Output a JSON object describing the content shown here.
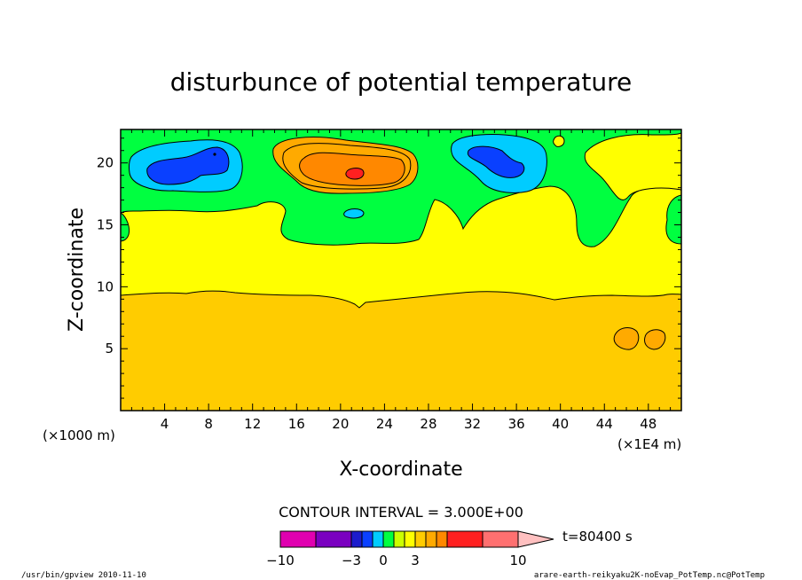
{
  "chart_data": {
    "type": "heatmap",
    "title": "disturbunce of potential temperature",
    "xlabel": "X-coordinate",
    "ylabel": "Z-coordinate",
    "x_unit_left": "(×1000 m)",
    "x_unit_right": "(×1E4 m)",
    "xlim": [
      0,
      51
    ],
    "ylim": [
      0,
      22.7
    ],
    "x_ticks": [
      4,
      8,
      12,
      16,
      20,
      24,
      28,
      32,
      36,
      40,
      44,
      48
    ],
    "y_ticks": [
      5,
      10,
      15,
      20
    ],
    "contour_interval_text": "CONTOUR INTERVAL = 3.000E+00",
    "time_text": "t=80400 s",
    "colorbar": {
      "colors": [
        "#e000b0",
        "#7a00c0",
        "#1c1ccc",
        "#0a40ff",
        "#00ccff",
        "#00ff40",
        "#ccff00",
        "#ffff00",
        "#ffcc00",
        "#ffaa00",
        "#ff8800",
        "#ff2020",
        "#ff7070",
        "#ffc0c0"
      ],
      "labels": [
        "−10",
        "−3",
        "0",
        "3",
        "10"
      ]
    },
    "regions": [
      {
        "level": "2.5",
        "color": "#ffcc00",
        "desc": "lower layer z below ~9.7"
      },
      {
        "level": "2",
        "color": "#ffff00",
        "desc": "band z ~9.7 to ~15"
      },
      {
        "level": "1",
        "color": "#00ff40",
        "desc": "upper background"
      },
      {
        "level": "-1",
        "color": "#00ccff",
        "desc": "cold anomaly centred x~6-8, z~20"
      },
      {
        "level": "-2",
        "color": "#0a40ff",
        "desc": "cold core x~6, z~20"
      },
      {
        "level": "-1",
        "color": "#00ccff",
        "desc": "cold anomaly centred x~34, z~20"
      },
      {
        "level": "-2",
        "color": "#0a40ff",
        "desc": "cold core x~34, z~20.5"
      },
      {
        "level": "3",
        "color": "#ffaa00",
        "desc": "warm anomaly centred x~21, z~19.5"
      },
      {
        "level": "4",
        "color": "#ff8800",
        "desc": "warm core x~21, z~19.5"
      },
      {
        "level": "3",
        "color": "#ffaa00",
        "desc": "small warm spots x~46.5 and x~48.5, z~6"
      }
    ]
  },
  "footer": {
    "left": "/usr/bin/gpview  2010-11-10",
    "right": "arare-earth-reikyaku2K-noEvap_PotTemp.nc@PotTemp"
  }
}
